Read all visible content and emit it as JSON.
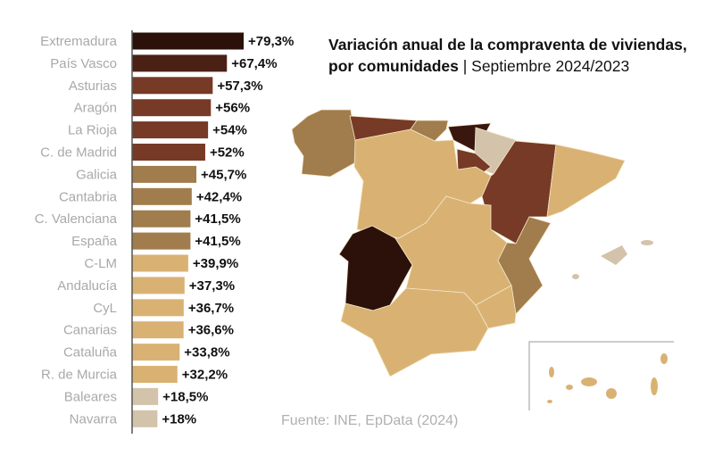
{
  "title": {
    "bold_part": "Variación anual de la compraventa de viviendas, por comunidades",
    "separator": " | ",
    "period": "Septiembre 2024/2023"
  },
  "source": "Fuente: INE, EpData (2024)",
  "chart_data": [
    {
      "type": "bar",
      "orientation": "horizontal",
      "categories": [
        "Extremadura",
        "País Vasco",
        "Asturias",
        "Aragón",
        "La Rioja",
        "C. de Madrid",
        "Galicia",
        "Cantabria",
        "C. Valenciana",
        "España",
        "C-LM",
        "Andalucía",
        "CyL",
        "Canarias",
        "Cataluña",
        "R. de Murcia",
        "Baleares",
        "Navarra"
      ],
      "values": [
        79.3,
        67.4,
        57.3,
        56,
        54,
        52,
        45.7,
        42.4,
        41.5,
        41.5,
        39.9,
        37.3,
        36.7,
        36.6,
        33.8,
        32.2,
        18.5,
        18
      ],
      "data_labels": [
        "+79,3%",
        "+67,4%",
        "+57,3%",
        "+56%",
        "+54%",
        "+52%",
        "+45,7%",
        "+42,4%",
        "+41,5%",
        "+41,5%",
        "+39,9%",
        "+37,3%",
        "+36,7%",
        "+36,6%",
        "+33,8%",
        "+32,2%",
        "+18,5%",
        "+18%"
      ],
      "colors": [
        "#2b110a",
        "#4b2115",
        "#773a26",
        "#773a26",
        "#773a26",
        "#773a26",
        "#a17c4c",
        "#a17c4c",
        "#a17c4c",
        "#a17c4c",
        "#d9b273",
        "#d9b273",
        "#d9b273",
        "#d9b273",
        "#d9b273",
        "#d9b273",
        "#d2c3aa",
        "#d2c3aa"
      ],
      "xlim": [
        0,
        80
      ],
      "grid": false,
      "legend": "none"
    },
    {
      "type": "choropleth",
      "regions": [
        {
          "name": "Galicia",
          "value": 45.7,
          "color": "#a17c4c"
        },
        {
          "name": "Asturias",
          "value": 57.3,
          "color": "#773a26"
        },
        {
          "name": "Cantabria",
          "value": 42.4,
          "color": "#a17c4c"
        },
        {
          "name": "País Vasco",
          "value": 67.4,
          "color": "#3a170e"
        },
        {
          "name": "Navarra",
          "value": 18,
          "color": "#d2c3aa"
        },
        {
          "name": "La Rioja",
          "value": 54,
          "color": "#773a26"
        },
        {
          "name": "Aragón",
          "value": 56,
          "color": "#773a26"
        },
        {
          "name": "Cataluña",
          "value": 33.8,
          "color": "#d9b273"
        },
        {
          "name": "CyL",
          "value": 36.7,
          "color": "#d9b273"
        },
        {
          "name": "C. de Madrid",
          "value": 52,
          "color": "#773a26"
        },
        {
          "name": "Extremadura",
          "value": 79.3,
          "color": "#2b110a"
        },
        {
          "name": "C-LM",
          "value": 39.9,
          "color": "#d9b273"
        },
        {
          "name": "C. Valenciana",
          "value": 41.5,
          "color": "#a17c4c"
        },
        {
          "name": "R. de Murcia",
          "value": 32.2,
          "color": "#d9b273"
        },
        {
          "name": "Andalucía",
          "value": 37.3,
          "color": "#d9b273"
        },
        {
          "name": "Baleares",
          "value": 18.5,
          "color": "#d2c3aa"
        },
        {
          "name": "Canarias",
          "value": 36.6,
          "color": "#d9b273"
        }
      ]
    }
  ]
}
